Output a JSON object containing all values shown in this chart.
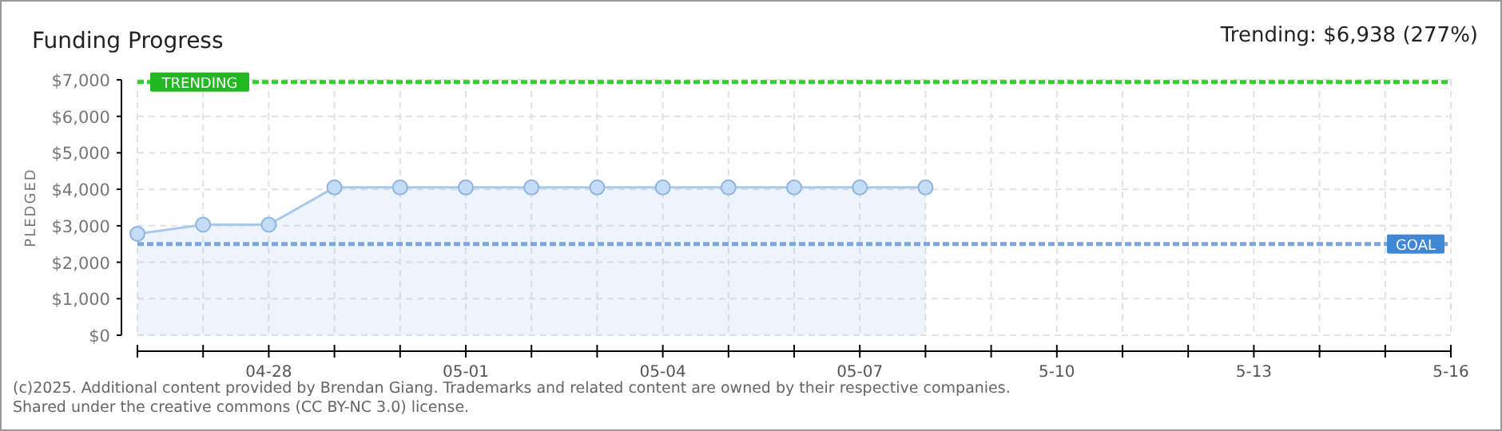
{
  "chart_data": {
    "type": "area",
    "title": "Funding Progress",
    "ylabel": "PLEDGED",
    "annotations": [
      "Trending: $6,938 (277%)",
      "(c)2025. Additional content provided by Brendan Giang. Trademarks and related content are owned by their respective companies.",
      "Shared under the creative commons (CC BY-NC 3.0) license."
    ],
    "x": [
      "--04-26",
      "--04-27",
      "--04-28",
      "--04-29",
      "--04-30",
      "--05-01",
      "--05-02",
      "--05-03",
      "--05-04",
      "--05-05",
      "--05-06",
      "--05-07",
      "--05-08"
    ],
    "series": [
      {
        "color": "#a8c8ee",
        "values": [
          2780,
          3030,
          3030,
          4050,
          4050,
          4050,
          4050,
          4050,
          4050,
          4050,
          4050,
          4050,
          4050
        ]
      }
    ],
    "xlim": [
      "--04-26",
      "--05-16"
    ],
    "xticks": [
      {
        "value": "--04-26",
        "label": null
      },
      {
        "value": "--04-27",
        "label": null
      },
      {
        "value": "--04-28",
        "label": "04-28"
      },
      {
        "value": "--04-29",
        "label": null
      },
      {
        "value": "--04-30",
        "label": null
      },
      {
        "value": "--05-01",
        "label": "05-01"
      },
      {
        "value": "--05-02",
        "label": null
      },
      {
        "value": "--05-03",
        "label": null
      },
      {
        "value": "--05-04",
        "label": "05-04"
      },
      {
        "value": "--05-05",
        "label": null
      },
      {
        "value": "--05-06",
        "label": null
      },
      {
        "value": "--05-07",
        "label": "05-07"
      },
      {
        "value": "--05-08",
        "label": null
      },
      {
        "value": "--05-09",
        "label": null
      },
      {
        "value": "--05-10",
        "label": "5-10"
      },
      {
        "value": "--05-11",
        "label": null
      },
      {
        "value": "--05-12",
        "label": null
      },
      {
        "value": "--05-13",
        "label": "5-13"
      },
      {
        "value": "--05-14",
        "label": null
      },
      {
        "value": "--05-15",
        "label": null
      },
      {
        "value": "--05-16",
        "label": "5-16"
      }
    ],
    "ylim": [
      0,
      7000
    ],
    "yticks": [
      {
        "value": 0,
        "label": "$0"
      },
      {
        "value": 1000,
        "label": "$1,000"
      },
      {
        "value": 2000,
        "label": "$2,000"
      },
      {
        "value": 3000,
        "label": "$3,000"
      },
      {
        "value": 4000,
        "label": "$4,000"
      },
      {
        "value": 5000,
        "label": "$5,000"
      },
      {
        "value": 6000,
        "label": "$6,000"
      },
      {
        "value": 7000,
        "label": "$7,000"
      }
    ],
    "ref_lines": [
      {
        "axis": "y",
        "value": 6938,
        "label": "TRENDING",
        "color": "#33cc33",
        "line_style": "dashed"
      },
      {
        "axis": "y",
        "value": 2500,
        "label": "GOAL",
        "color": "#7ea6dc",
        "line_style": "dashed"
      }
    ],
    "grid": true,
    "marker": "circle"
  }
}
